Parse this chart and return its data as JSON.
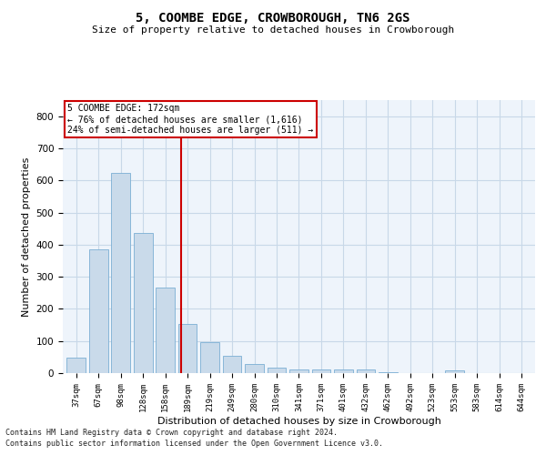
{
  "title1": "5, COOMBE EDGE, CROWBOROUGH, TN6 2GS",
  "title2": "Size of property relative to detached houses in Crowborough",
  "xlabel": "Distribution of detached houses by size in Crowborough",
  "ylabel": "Number of detached properties",
  "categories": [
    "37sqm",
    "67sqm",
    "98sqm",
    "128sqm",
    "158sqm",
    "189sqm",
    "219sqm",
    "249sqm",
    "280sqm",
    "310sqm",
    "341sqm",
    "371sqm",
    "401sqm",
    "432sqm",
    "462sqm",
    "492sqm",
    "523sqm",
    "553sqm",
    "583sqm",
    "614sqm",
    "644sqm"
  ],
  "values": [
    48,
    385,
    623,
    437,
    265,
    152,
    95,
    54,
    28,
    17,
    10,
    12,
    12,
    10,
    2,
    0,
    0,
    8,
    0,
    0,
    0
  ],
  "bar_color": "#c9daea",
  "bar_edge_color": "#7bafd4",
  "grid_color": "#c8d8e8",
  "background_color": "#eef4fb",
  "vline_color": "#cc0000",
  "annotation_text": "5 COOMBE EDGE: 172sqm\n← 76% of detached houses are smaller (1,616)\n24% of semi-detached houses are larger (511) →",
  "annotation_box_color": "#cc0000",
  "footnote1": "Contains HM Land Registry data © Crown copyright and database right 2024.",
  "footnote2": "Contains public sector information licensed under the Open Government Licence v3.0.",
  "ylim": [
    0,
    850
  ],
  "yticks": [
    0,
    100,
    200,
    300,
    400,
    500,
    600,
    700,
    800
  ]
}
